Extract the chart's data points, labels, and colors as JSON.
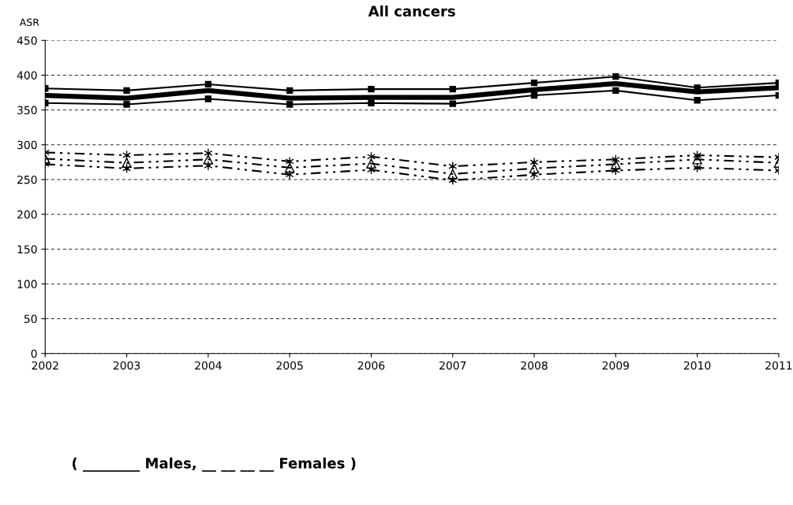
{
  "chart_data": {
    "type": "line",
    "title": "All cancers",
    "ylabel": "ASR",
    "x": [
      2002,
      2003,
      2004,
      2005,
      2006,
      2007,
      2008,
      2009,
      2010,
      2011
    ],
    "xlim": [
      2002,
      2011
    ],
    "xticks": [
      2002,
      2003,
      2004,
      2005,
      2006,
      2007,
      2008,
      2009,
      2010,
      2011
    ],
    "ylim": [
      0,
      450
    ],
    "yticks": [
      0,
      50,
      100,
      150,
      200,
      250,
      300,
      350,
      400,
      450
    ],
    "grid": "y",
    "legend": false,
    "annotations": [
      "( ________ Males, __ __ __ __ Females )"
    ],
    "series": [
      {
        "color": "#000000",
        "marker": "square",
        "line_style": "solid",
        "values": [
          381,
          378,
          387,
          378,
          380,
          380,
          389,
          398,
          382,
          389
        ]
      },
      {
        "color": "#000000",
        "marker": "none",
        "line_style": "solid",
        "values": [
          371,
          367,
          378,
          367,
          368,
          368,
          379,
          388,
          376,
          382
        ]
      },
      {
        "color": "#000000",
        "marker": "square",
        "line_style": "solid",
        "values": [
          360,
          358,
          366,
          358,
          360,
          359,
          371,
          378,
          364,
          371
        ]
      },
      {
        "color": "#000000",
        "marker": "cross",
        "line_style": "dashed",
        "values": [
          289,
          285,
          288,
          276,
          283,
          269,
          275,
          279,
          285,
          282
        ]
      },
      {
        "color": "#000000",
        "marker": "triangle",
        "line_style": "dashed",
        "values": [
          280,
          274,
          279,
          267,
          273,
          258,
          266,
          272,
          279,
          274
        ]
      },
      {
        "color": "#000000",
        "marker": "cross",
        "line_style": "dashed",
        "values": [
          272,
          266,
          270,
          257,
          264,
          249,
          257,
          263,
          267,
          263
        ]
      }
    ]
  }
}
